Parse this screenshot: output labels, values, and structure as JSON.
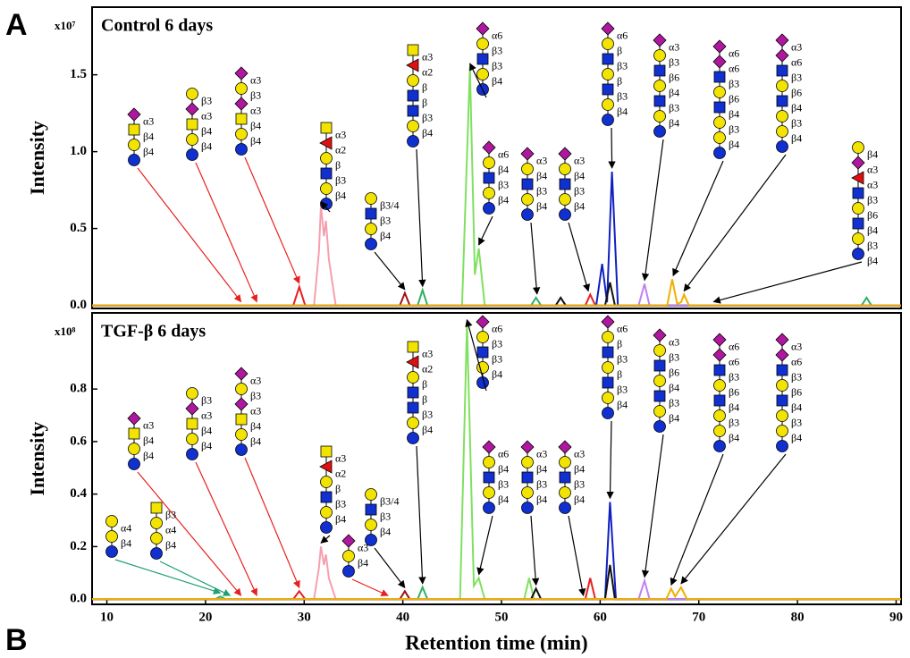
{
  "panel_labels": [
    "A",
    "B"
  ],
  "chart_data": [
    {
      "type": "line",
      "title": "Control 6 days",
      "scale_label": "x10⁷",
      "y_label": "Intensity",
      "xlim": [
        8.5,
        90.5
      ],
      "ylim": [
        -0.02,
        1.94
      ],
      "yticks": [
        {
          "value": 0,
          "label": "0.0"
        },
        0.5,
        {
          "value": 1,
          "label": "1.0"
        },
        1.5
      ],
      "series": [
        {
          "color": "#f5a0b0",
          "x": [
            8.5,
            31.0,
            31.5,
            31.7,
            32.0,
            32.2,
            32.5,
            33.2,
            90.5
          ],
          "values": [
            0,
            0,
            0.35,
            0.65,
            0.45,
            0.55,
            0.3,
            0,
            0
          ]
        },
        {
          "color": "#a01010",
          "x": [
            8.5,
            39.7,
            40.2,
            40.7,
            90.5
          ],
          "values": [
            0,
            0,
            0.08,
            0,
            0
          ]
        },
        {
          "color": "#e82020",
          "x": [
            8.5,
            28.9,
            29.5,
            30.1,
            58.5,
            59.0,
            59.5,
            90.5
          ],
          "values": [
            0,
            0,
            0.12,
            0,
            0,
            0.07,
            0,
            0
          ]
        },
        {
          "color": "#30b060",
          "x": [
            8.5,
            41.5,
            42.0,
            42.5,
            53.0,
            53.5,
            54.0,
            86.5,
            87.0,
            87.5,
            90.5
          ],
          "values": [
            0,
            0,
            0.1,
            0,
            0,
            0.05,
            0,
            0,
            0.05,
            0,
            0
          ]
        },
        {
          "color": "#80e060",
          "x": [
            8.5,
            46.0,
            46.8,
            47.3,
            47.7,
            48.3,
            90.5
          ],
          "values": [
            0,
            0,
            1.55,
            0.2,
            0.37,
            0,
            0
          ]
        },
        {
          "color": "#1020c0",
          "x": [
            8.5,
            59.6,
            60.2,
            60.7,
            61.2,
            61.8,
            90.5
          ],
          "values": [
            0,
            0,
            0.27,
            0.02,
            0.87,
            0,
            0
          ]
        },
        {
          "color": "#101010",
          "x": [
            8.5,
            55.5,
            56.0,
            56.5,
            60.5,
            61.0,
            61.5,
            90.5
          ],
          "values": [
            0,
            0,
            0.05,
            0,
            0,
            0.15,
            0,
            0
          ]
        },
        {
          "color": "#c080f0",
          "x": [
            8.5,
            63.9,
            64.5,
            65.0,
            90.5
          ],
          "values": [
            0,
            0,
            0.14,
            0,
            0
          ]
        },
        {
          "color": "#f0b000",
          "x": [
            8.5,
            66.8,
            67.3,
            67.8,
            68.2,
            68.5,
            69.0,
            90.5
          ],
          "values": [
            0,
            0,
            0.17,
            0.01,
            0.02,
            0.07,
            0,
            0
          ]
        }
      ],
      "glycans": [
        {
          "rt": 23.6,
          "color": "#e82020",
          "labels": [
            "α3",
            "β4",
            "β4"
          ]
        },
        {
          "rt": 25.2,
          "color": "#e82020",
          "labels": [
            "β3",
            "α3",
            "β4",
            "β4"
          ]
        },
        {
          "rt": 29.5,
          "color": "#e82020",
          "labels": [
            "α3",
            "β3",
            "α3",
            "β4",
            "β4"
          ]
        },
        {
          "rt": 31.7,
          "color": "#000000",
          "labels": [
            "α3",
            "α2",
            "β",
            "β3",
            "β4"
          ]
        },
        {
          "rt": 40.2,
          "color": "#000000",
          "labels": [
            "β3/4",
            "β3",
            "β4"
          ]
        },
        {
          "rt": 42,
          "color": "#000000",
          "labels": [
            "α3",
            "α2",
            "β",
            "β",
            "β3",
            "β4"
          ]
        },
        {
          "rt": 46.8,
          "color": "#000000",
          "labels": [
            "α6",
            "β3",
            "β3",
            "β4"
          ]
        },
        {
          "rt": 47.7,
          "color": "#000000",
          "labels": [
            "α6",
            "β4",
            "β3",
            "β4"
          ]
        },
        {
          "rt": 53.6,
          "color": "#000000",
          "labels": [
            "α3",
            "β4",
            "β3",
            "β4"
          ]
        },
        {
          "rt": 58.8,
          "color": "#000000",
          "labels": [
            "α3",
            "β4",
            "β3",
            "β4"
          ]
        },
        {
          "rt": 61.2,
          "color": "#000000",
          "labels": [
            "α6",
            "β",
            "β3",
            "β",
            "β3",
            "β4"
          ]
        },
        {
          "rt": 64.5,
          "color": "#000000",
          "labels": [
            "α3",
            "β3",
            "β6",
            "β4",
            "β3",
            "β4"
          ]
        },
        {
          "rt": 67.4,
          "color": "#000000",
          "labels": [
            "α6",
            "α6",
            "β3",
            "β6",
            "β4",
            "β3",
            "β4"
          ]
        },
        {
          "rt": 68.5,
          "color": "#000000",
          "labels": [
            "α3",
            "α6",
            "β3",
            "β6",
            "β4",
            "β3",
            "β4"
          ]
        },
        {
          "rt": 71.5,
          "color": "#000000",
          "labels": [
            "β4",
            "α3",
            "α3",
            "β3",
            "β6",
            "β4",
            "β3",
            "β4"
          ]
        }
      ]
    },
    {
      "type": "line",
      "title": "TGF-β 6 days",
      "scale_label": "x10⁸",
      "y_label": "Intensity",
      "x_label": "Retention time (min)",
      "xlim": [
        8.5,
        90.5
      ],
      "ylim": [
        -0.02,
        1.09
      ],
      "xticks": [
        10,
        20,
        30,
        40,
        50,
        60,
        70,
        80,
        90
      ],
      "yticks": [
        {
          "value": 0,
          "label": "0.0"
        },
        0.2,
        0.4,
        0.6,
        0.8
      ],
      "series": [
        {
          "color": "#f5a0b0",
          "x": [
            8.5,
            31.0,
            31.5,
            31.7,
            32.0,
            32.2,
            32.5,
            33.2,
            90.5
          ],
          "values": [
            0,
            0,
            0.12,
            0.2,
            0.13,
            0.17,
            0.08,
            0,
            0
          ]
        },
        {
          "color": "#a01010",
          "x": [
            8.5,
            39.7,
            40.2,
            40.7,
            90.5
          ],
          "values": [
            0,
            0,
            0.03,
            0,
            0
          ]
        },
        {
          "color": "#e82020",
          "x": [
            8.5,
            28.9,
            29.5,
            30.1,
            58.5,
            59.0,
            59.5,
            90.5
          ],
          "values": [
            0,
            0,
            0.03,
            0,
            0,
            0.08,
            0,
            0
          ]
        },
        {
          "color": "#30b060",
          "x": [
            8.5,
            21.0,
            21.5,
            22.0,
            41.5,
            42.0,
            42.5,
            90.5
          ],
          "values": [
            0,
            0,
            0.01,
            0,
            0,
            0.045,
            0,
            0
          ]
        },
        {
          "color": "#80e060",
          "x": [
            8.5,
            45.8,
            46.5,
            47.2,
            47.7,
            48.3,
            52.3,
            52.8,
            53.3,
            90.5
          ],
          "values": [
            0,
            0,
            1.05,
            0.05,
            0.08,
            0,
            0,
            0.08,
            0,
            0
          ]
        },
        {
          "color": "#1020c0",
          "x": [
            8.5,
            60.5,
            61.0,
            61.6,
            90.5
          ],
          "values": [
            0,
            0,
            0.37,
            0,
            0
          ]
        },
        {
          "color": "#101010",
          "x": [
            8.5,
            53.0,
            53.5,
            54.0,
            60.5,
            61.0,
            61.5,
            90.5
          ],
          "values": [
            0,
            0,
            0.04,
            0,
            0,
            0.13,
            0,
            0
          ]
        },
        {
          "color": "#c080f0",
          "x": [
            8.5,
            63.9,
            64.5,
            65.0,
            90.5
          ],
          "values": [
            0,
            0,
            0.07,
            0,
            0
          ]
        },
        {
          "color": "#f0b000",
          "x": [
            8.5,
            66.7,
            67.2,
            67.6,
            68.2,
            68.8,
            90.5
          ],
          "values": [
            0,
            0,
            0.04,
            0.01,
            0.045,
            0,
            0
          ]
        }
      ],
      "glycans": [
        {
          "rt": 23.6,
          "color": "#e82020",
          "labels": [
            "α3",
            "β4",
            "β4"
          ]
        },
        {
          "rt": 25.2,
          "color": "#e82020",
          "labels": [
            "β3",
            "α3",
            "β4",
            "β4"
          ]
        },
        {
          "rt": 29.5,
          "color": "#e82020",
          "labels": [
            "α3",
            "β3",
            "α3",
            "β4",
            "β4"
          ]
        },
        {
          "rt": 31.7,
          "color": "#000000",
          "labels": [
            "α3",
            "α2",
            "β",
            "β3",
            "β4"
          ]
        },
        {
          "rt": 40.2,
          "color": "#000000",
          "labels": [
            "β3/4",
            "β3",
            "β4"
          ]
        },
        {
          "rt": 42,
          "color": "#000000",
          "labels": [
            "α3",
            "α2",
            "β",
            "β",
            "β3",
            "β4"
          ]
        },
        {
          "rt": 46.5,
          "color": "#000000",
          "labels": [
            "α6",
            "β3",
            "β3",
            "β4"
          ]
        },
        {
          "rt": 47.7,
          "color": "#000000",
          "labels": [
            "α6",
            "β4",
            "β3",
            "β4"
          ]
        },
        {
          "rt": 53.5,
          "color": "#000000",
          "labels": [
            "α3",
            "β4",
            "β3",
            "β4"
          ]
        },
        {
          "rt": 58.3,
          "color": "#000000",
          "labels": [
            "α3",
            "β4",
            "β3",
            "β4"
          ]
        },
        {
          "rt": 61.0,
          "color": "#000000",
          "labels": [
            "α6",
            "β",
            "β3",
            "β",
            "β3",
            "β4"
          ]
        },
        {
          "rt": 64.5,
          "color": "#000000",
          "labels": [
            "α3",
            "β3",
            "β6",
            "β4",
            "β3",
            "β4"
          ]
        },
        {
          "rt": 67.2,
          "color": "#000000",
          "labels": [
            "α6",
            "α6",
            "β3",
            "β6",
            "β4",
            "β3",
            "β4"
          ]
        },
        {
          "rt": 68.2,
          "color": "#000000",
          "labels": [
            "α3",
            "α6",
            "β3",
            "β6",
            "β4",
            "β3",
            "β4"
          ]
        },
        {
          "rt": 21.5,
          "color": "#20a070",
          "labels": [
            "α4",
            "β4"
          ]
        },
        {
          "rt": 22.5,
          "color": "#20a070",
          "labels": [
            "β3",
            "α4",
            "β4"
          ]
        },
        {
          "rt": 38.5,
          "color": "#e82020",
          "labels": [
            "α3",
            "β4"
          ]
        }
      ]
    }
  ]
}
